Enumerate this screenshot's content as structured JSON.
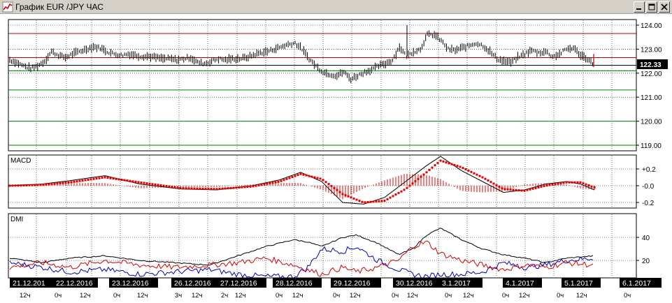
{
  "window": {
    "title": "График EUR /JPY ЧАС",
    "buttons": [
      "minimize",
      "maximize",
      "close"
    ]
  },
  "colors": {
    "background": "#ffffff",
    "grid": "#000000",
    "level_red": "#b00000",
    "level_green": "#008000",
    "macd_signal": "#e00000",
    "dmi_plus": "#0000c0",
    "dmi_minus": "#d00000",
    "adx": "#000000"
  },
  "price_panel": {
    "y_ticks": [
      "124.00",
      "123.00",
      "122.00",
      "121.00",
      "120.00",
      "119.00"
    ],
    "current_price": "122.33",
    "red_levels": [
      123.65,
      122.65
    ],
    "green_levels": [
      122.1,
      121.3,
      120.0,
      119.0
    ]
  },
  "macd_panel": {
    "label": "MACD",
    "y_ticks": [
      "+0.2",
      "-0.0",
      "-0.2"
    ]
  },
  "dmi_panel": {
    "label": "DMI",
    "y_ticks": [
      "40",
      "20"
    ]
  },
  "time_axis": {
    "dates": [
      "21.12.201",
      "22.12.2016",
      "23.12.2016",
      "26.12.2016",
      "27.12.2016",
      "28.12.2016",
      "29.12.2016",
      "30.12.2016",
      "3.1.2017",
      "4.1.2017",
      "5.1.2017",
      "6.1.2017"
    ],
    "hours": [
      {
        "t": "12ч"
      },
      {
        "t": "0ч"
      },
      {
        "t": "12ч"
      },
      {
        "t": "0ч"
      },
      {
        "t": "12ч"
      },
      {
        "t": "3ч"
      },
      {
        "t": "12ч"
      },
      {
        "t": "2ч"
      },
      {
        "t": "12ч"
      },
      {
        "t": "0ч"
      },
      {
        "t": "12ч"
      },
      {
        "t": "0ч"
      },
      {
        "t": "12ч"
      },
      {
        "t": "0ч"
      },
      {
        "t": "12ч"
      },
      {
        "t": "0ч"
      },
      {
        "t": "12ч"
      },
      {
        "t": "0ч"
      },
      {
        "t": "12ч"
      },
      {
        "t": "0ч"
      },
      {
        "t": "12ч"
      },
      {
        "t": "0ч"
      }
    ]
  },
  "chart_data": {
    "type": "line",
    "series": [
      {
        "values": [
          122.55,
          122.45,
          122.3,
          122.2,
          122.3,
          122.5,
          122.9,
          122.75,
          122.65,
          122.8,
          122.9,
          123.0,
          123.1,
          123.05,
          122.9,
          122.8,
          122.75,
          122.8,
          122.75,
          122.7,
          122.7,
          122.65,
          122.6,
          122.6,
          122.55,
          122.6,
          122.65,
          122.45,
          122.4,
          122.5,
          122.6,
          122.55,
          122.6,
          122.6,
          122.65,
          122.75,
          122.85,
          122.9,
          123.0,
          123.1,
          123.2,
          123.25,
          123.0,
          122.6,
          122.3,
          122.05,
          121.95,
          121.9,
          122.05,
          121.75,
          121.9,
          122.05,
          122.15,
          122.3,
          122.4,
          122.55,
          123.1,
          122.7,
          122.9,
          123.0,
          123.6,
          123.6,
          123.35,
          123.0,
          122.95,
          123.05,
          123.15,
          123.25,
          123.15,
          122.9,
          122.6,
          122.5,
          122.45,
          122.65,
          122.8,
          122.95,
          122.85,
          122.9,
          122.7,
          122.8,
          123.0,
          123.05,
          122.75,
          122.6,
          122.33
        ]
      }
    ]
  }
}
